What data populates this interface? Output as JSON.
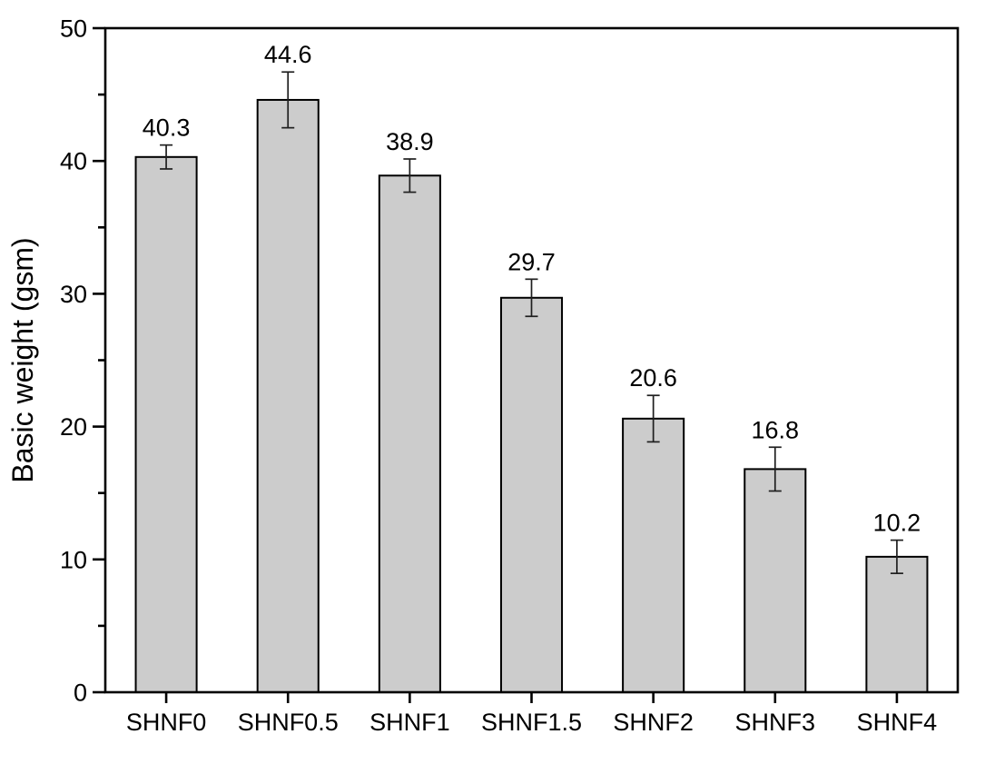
{
  "figure": {
    "background": "#ffffff"
  },
  "chart_data": {
    "type": "bar",
    "title": "",
    "xlabel": "",
    "ylabel": "Basic weight (gsm)",
    "categories": [
      "SHNF0",
      "SHNF0.5",
      "SHNF1",
      "SHNF1.5",
      "SHNF2",
      "SHNF3",
      "SHNF4"
    ],
    "values": [
      40.3,
      44.6,
      38.9,
      29.7,
      20.6,
      16.8,
      10.2
    ],
    "errors": [
      0.9,
      2.1,
      1.25,
      1.4,
      1.75,
      1.65,
      1.25
    ],
    "value_labels": [
      "40.3",
      "44.6",
      "38.9",
      "29.7",
      "20.6",
      "16.8",
      "10.2"
    ],
    "ylim": [
      0,
      50
    ],
    "y_major_ticks": [
      0,
      10,
      20,
      30,
      40,
      50
    ],
    "y_minor_ticks": [
      5,
      15,
      25,
      35,
      45
    ],
    "grid": false,
    "legend": "none",
    "error_bars": true,
    "colors": {
      "bar_fill": "#cccccc",
      "bar_stroke": "#000000",
      "errorbar": "#1f1f1f",
      "axis": "#000000",
      "text": "#000000"
    }
  }
}
